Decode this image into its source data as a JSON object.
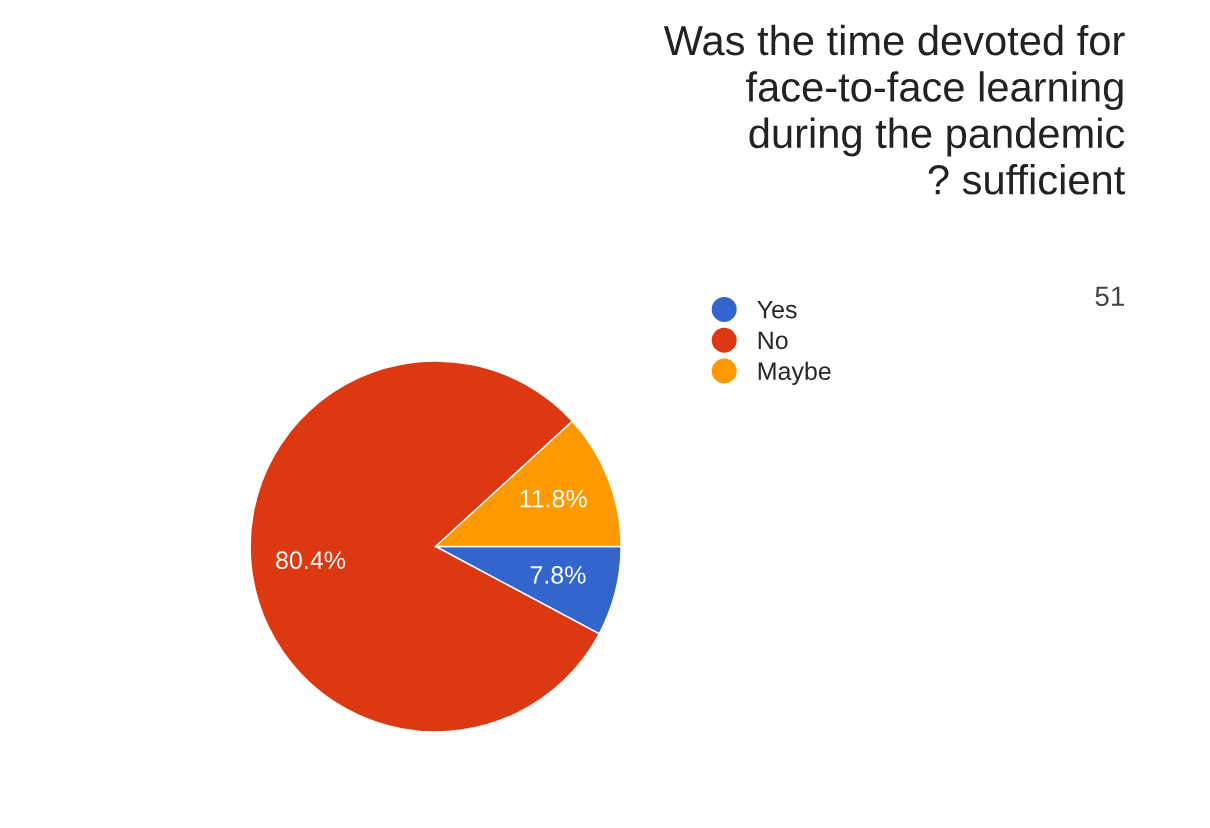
{
  "chart_data": {
    "type": "pie",
    "title": "Was the time devoted for\nface-to-face learning\nduring the pandemic\n? sufficient",
    "subtitle": "51",
    "categories": [
      "Yes",
      "No",
      "Maybe"
    ],
    "values": [
      7.8,
      80.4,
      11.8
    ],
    "colors": [
      "#3366cc",
      "#dc3912",
      "#ff9900"
    ],
    "value_labels": [
      "7.8%",
      "80.4%",
      "11.8%"
    ],
    "legend": "right"
  }
}
